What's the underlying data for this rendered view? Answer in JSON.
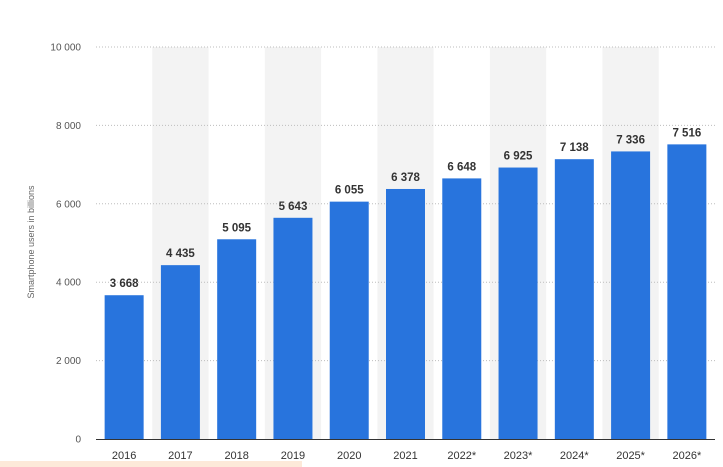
{
  "chart_data": {
    "type": "bar",
    "categories": [
      "2016",
      "2017",
      "2018",
      "2019",
      "2020",
      "2021",
      "2022*",
      "2023*",
      "2024*",
      "2025*",
      "2026*"
    ],
    "values": [
      3668,
      4435,
      5095,
      5643,
      6055,
      6378,
      6648,
      6925,
      7138,
      7336,
      7516
    ],
    "value_labels": [
      "3 668",
      "4 435",
      "5 095",
      "5 643",
      "6 055",
      "6 378",
      "6 648",
      "6 925",
      "7 138",
      "7 336",
      "7 516"
    ],
    "ylabel": "Smartphone users in billions",
    "xlabel": "",
    "ylim": [
      0,
      10000
    ],
    "yticks": [
      0,
      2000,
      4000,
      6000,
      8000,
      10000
    ],
    "ytick_labels": [
      "0",
      "2 000",
      "4 000",
      "6 000",
      "8 000",
      "10 000"
    ],
    "grid": true,
    "bar_color": "#2874dd",
    "band_color": "#f3f3f3",
    "legend": "none"
  }
}
